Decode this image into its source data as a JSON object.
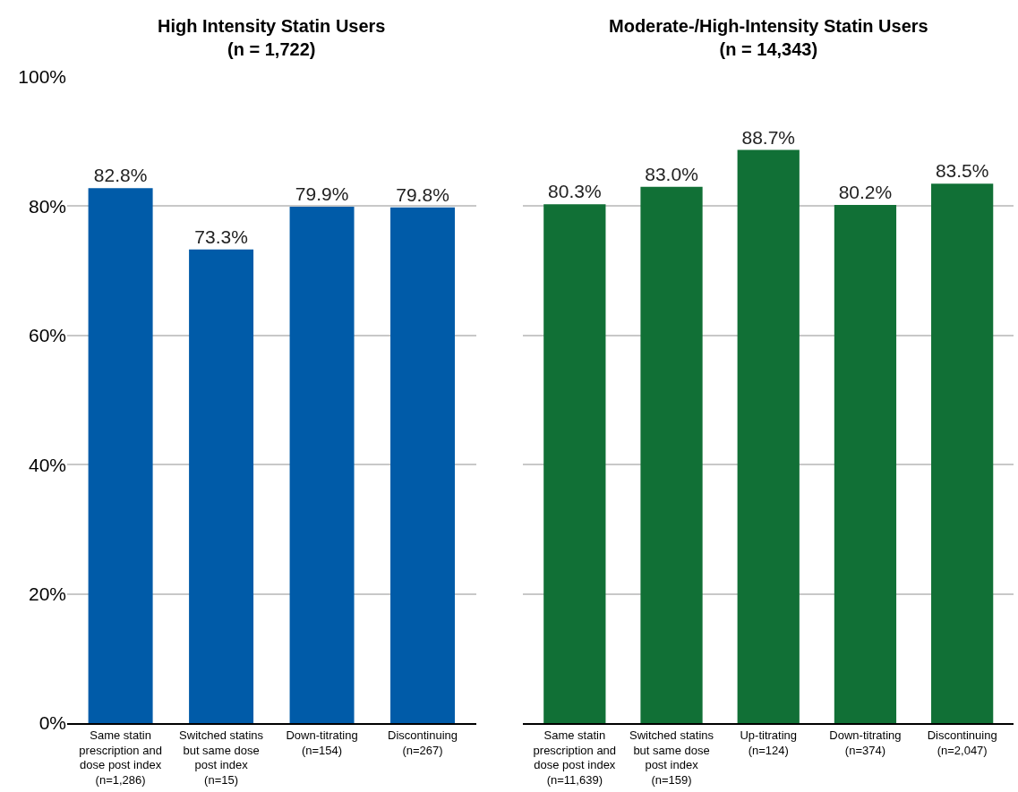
{
  "chart_data": [
    {
      "type": "bar",
      "title": "High Intensity Statin Users\n(n = 1,722)",
      "categories": [
        "Same statin\nprescription and\ndose post index\n(n=1,286)",
        "Switched statins\nbut same dose\npost index\n(n=15)",
        "Down-titrating\n(n=154)",
        "Discontinuing\n(n=267)"
      ],
      "values": [
        82.8,
        73.3,
        79.9,
        79.8
      ],
      "color": "#005ba8",
      "value_labels": [
        "82.8%",
        "73.3%",
        "79.9%",
        "79.8%"
      ],
      "ylim": [
        0,
        100
      ],
      "yticks": [
        {
          "value": 0,
          "label": "0%"
        },
        {
          "value": 20,
          "label": "20%"
        },
        {
          "value": 40,
          "label": "40%"
        },
        {
          "value": 60,
          "label": "60%"
        },
        {
          "value": 80,
          "label": "80%"
        },
        {
          "value": 100,
          "label": "100%"
        }
      ],
      "grid": "y"
    },
    {
      "type": "bar",
      "title": "Moderate-/High-Intensity Statin Users\n(n = 14,343)",
      "categories": [
        "Same statin\nprescription and\ndose post index\n(n=11,639)",
        "Switched statins\nbut same dose\npost index\n(n=159)",
        "Up-titrating\n(n=124)",
        "Down-titrating\n(n=374)",
        "Discontinuing\n(n=2,047)"
      ],
      "values": [
        80.3,
        83.0,
        88.7,
        80.2,
        83.5
      ],
      "color": "#117036",
      "value_labels": [
        "80.3%",
        "83.0%",
        "88.7%",
        "80.2%",
        "83.5%"
      ],
      "ylim": [
        0,
        100
      ],
      "yticks": [
        {
          "value": 0,
          "label": null
        },
        {
          "value": 20,
          "label": null
        },
        {
          "value": 40,
          "label": null
        },
        {
          "value": 60,
          "label": null
        },
        {
          "value": 80,
          "label": null
        },
        {
          "value": 100,
          "label": null
        }
      ],
      "grid": "y",
      "tick_labels": "x"
    }
  ]
}
